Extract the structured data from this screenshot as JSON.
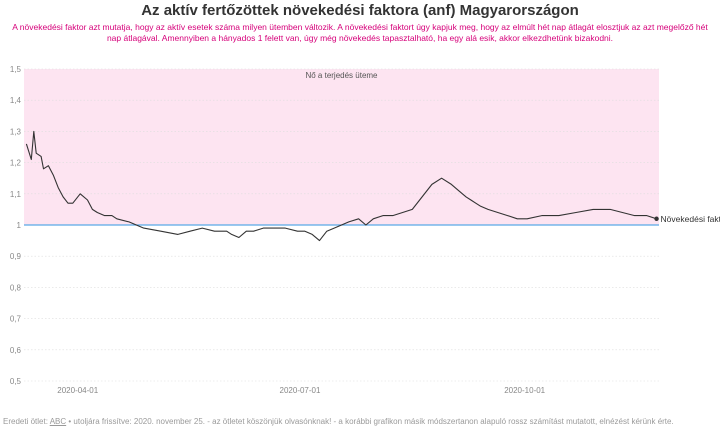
{
  "header": {
    "title": "Az aktív fertőzöttek növekedési faktora (anf) Magyarországon",
    "subtitle": "A növekedési faktor azt mutatja, hogy az aktív esetek száma milyen ütemben változik. A növekedési faktort úgy kapjuk meg, hogy az elmúlt hét nap átlagát elosztjuk az azt megelőző hét nap átlagával. Amennyiben a hányados 1 felett van, úgy még növekedés tapasztalható, ha egy alá esik, akkor elkezdhetünk bizakodni."
  },
  "footer": {
    "prefix": "Eredeti ötlet: ",
    "link_text": "ABC",
    "suffix": " • utoljára frissítve: 2020. november 25. - az ötletet köszönjük olvasónknak! - a korábbi grafikon másik módszertanon alapuló rossz számítást mutatott, elnézést kérünk érte."
  },
  "colors": {
    "band": "#fde4f1",
    "line": "#333333",
    "reference": "#5aa9e6",
    "grid": "#dddddd",
    "title": "#333333",
    "subtitle": "#d6007a"
  },
  "chart_data": {
    "type": "line",
    "xlim": [
      "2020-03-10",
      "2020-11-25"
    ],
    "ylim": [
      0.5,
      1.5
    ],
    "yticks": [
      0.5,
      0.6,
      0.7,
      0.8,
      0.9,
      1,
      1.1,
      1.2,
      1.3,
      1.4,
      1.5
    ],
    "ytick_labels": [
      "0,5",
      "0,6",
      "0,7",
      "0,8",
      "0,9",
      "1",
      "1,1",
      "1,2",
      "1,3",
      "1,4",
      "1,5"
    ],
    "xticks": [
      "2020-04-01",
      "2020-07-01",
      "2020-10-01"
    ],
    "xtick_labels": [
      "2020-04-01",
      "2020-07-01",
      "2020-10-01"
    ],
    "reference_line": 1,
    "band": {
      "from": 1,
      "to": 1.5,
      "label": "Nő a terjedés üteme"
    },
    "series": [
      {
        "name": "Növekedési faktor",
        "x": [
          "2020-03-11",
          "2020-03-13",
          "2020-03-14",
          "2020-03-15",
          "2020-03-17",
          "2020-03-18",
          "2020-03-20",
          "2020-03-22",
          "2020-03-24",
          "2020-03-26",
          "2020-03-28",
          "2020-03-30",
          "2020-04-02",
          "2020-04-05",
          "2020-04-07",
          "2020-04-09",
          "2020-04-12",
          "2020-04-15",
          "2020-04-17",
          "2020-04-22",
          "2020-04-28",
          "2020-05-05",
          "2020-05-12",
          "2020-05-17",
          "2020-05-22",
          "2020-05-27",
          "2020-06-01",
          "2020-06-03",
          "2020-06-06",
          "2020-06-09",
          "2020-06-12",
          "2020-06-16",
          "2020-06-20",
          "2020-06-25",
          "2020-06-30",
          "2020-07-03",
          "2020-07-06",
          "2020-07-09",
          "2020-07-12",
          "2020-07-15",
          "2020-07-18",
          "2020-07-21",
          "2020-07-25",
          "2020-07-28",
          "2020-07-31",
          "2020-08-04",
          "2020-08-08",
          "2020-08-12",
          "2020-08-16",
          "2020-08-20",
          "2020-08-24",
          "2020-08-28",
          "2020-09-01",
          "2020-09-04",
          "2020-09-07",
          "2020-09-09",
          "2020-09-11",
          "2020-09-13",
          "2020-09-16",
          "2020-09-20",
          "2020-09-24",
          "2020-09-28",
          "2020-10-02",
          "2020-10-08",
          "2020-10-15",
          "2020-10-22",
          "2020-10-29",
          "2020-11-05",
          "2020-11-10",
          "2020-11-15",
          "2020-11-20",
          "2020-11-24"
        ],
        "values": [
          1.26,
          1.21,
          1.3,
          1.23,
          1.22,
          1.18,
          1.19,
          1.16,
          1.12,
          1.09,
          1.07,
          1.07,
          1.1,
          1.08,
          1.05,
          1.04,
          1.03,
          1.03,
          1.02,
          1.01,
          0.99,
          0.98,
          0.97,
          0.98,
          0.99,
          0.98,
          0.98,
          0.97,
          0.96,
          0.98,
          0.98,
          0.99,
          0.99,
          0.99,
          0.98,
          0.98,
          0.97,
          0.95,
          0.98,
          0.99,
          1.0,
          1.01,
          1.02,
          1.0,
          1.02,
          1.03,
          1.03,
          1.04,
          1.05,
          1.09,
          1.13,
          1.15,
          1.13,
          1.11,
          1.09,
          1.08,
          1.07,
          1.06,
          1.05,
          1.04,
          1.03,
          1.02,
          1.02,
          1.03,
          1.03,
          1.04,
          1.05,
          1.05,
          1.04,
          1.03,
          1.03,
          1.02
        ]
      }
    ]
  }
}
